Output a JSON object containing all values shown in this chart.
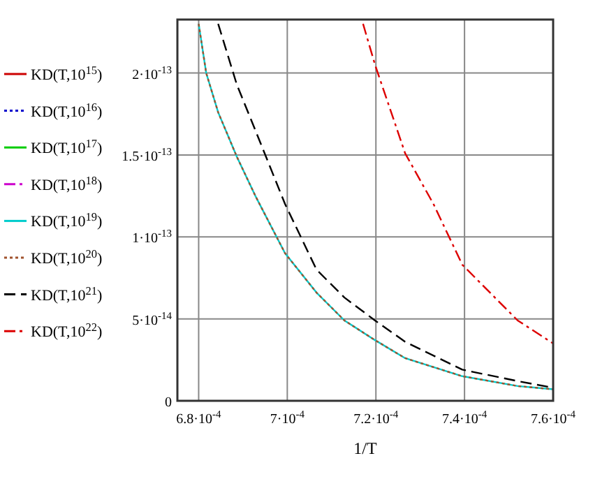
{
  "chart_data": {
    "type": "line",
    "xlabel": "1/T",
    "grid": true,
    "legend": "left",
    "marker": "none",
    "xlim": [
      0.0006752,
      0.00076
    ],
    "ylim": [
      0,
      2.326e-13
    ],
    "xticks": [
      {
        "value": 0.00068,
        "label": "6.8·10$^{-4}$"
      },
      {
        "value": 0.0007,
        "label": "7·10$^{-4}$"
      },
      {
        "value": 0.00072,
        "label": "7.2·10$^{-4}$"
      },
      {
        "value": 0.00074,
        "label": "7.4·10$^{-4}$"
      },
      {
        "value": 0.00076,
        "label": "7.6·10$^{-4}$"
      }
    ],
    "yticks": [
      0,
      {
        "value": 5e-14,
        "label": "5·10$^{-14}$"
      },
      {
        "value": 1e-13,
        "label": "1·10$^{-13}$"
      },
      {
        "value": 1.5e-13,
        "label": "1.5·10$^{-13}$"
      },
      {
        "value": 2e-13,
        "label": "2·10$^{-13}$"
      }
    ],
    "x": [
      0.00068,
      0.0006817,
      0.0006844,
      0.0006886,
      0.0006928,
      0.0006995,
      0.0007066,
      0.0007129,
      0.0007198,
      0.0007266,
      0.0007395,
      0.000752,
      0.00076
    ],
    "series": [
      {
        "name": "KD(T,10$^{15}$)",
        "color": "#cc0000",
        "line_style": "solid",
        "values": [
          null,
          null,
          null,
          null,
          null,
          null,
          null,
          null,
          null,
          null,
          null,
          null,
          null
        ]
      },
      {
        "name": "KD(T,10$^{16}$)",
        "color": "#0000cc",
        "line_style": "dotted",
        "values": [
          null,
          null,
          null,
          null,
          null,
          null,
          null,
          null,
          null,
          null,
          null,
          null,
          null
        ]
      },
      {
        "name": "KD(T,10$^{17}$)",
        "color": "#00cc00",
        "line_style": "solid",
        "values": [
          null,
          null,
          null,
          null,
          null,
          null,
          null,
          null,
          null,
          null,
          null,
          null,
          null
        ]
      },
      {
        "name": "KD(T,10$^{18}$)",
        "color": "#cc00cc",
        "line_style": "dashdot",
        "values": [
          null,
          null,
          null,
          null,
          null,
          null,
          null,
          null,
          null,
          null,
          null,
          null,
          null
        ]
      },
      {
        "name": "KD(T,10$^{19}$)",
        "color": "#00cccc",
        "line_style": "solid",
        "values": [
          2.3e-13,
          2e-13,
          1.76e-13,
          1.49e-13,
          1.25e-13,
          9e-14,
          6.6e-14,
          4.9e-14,
          3.7e-14,
          2.6e-14,
          1.5e-14,
          9e-15,
          7e-15
        ]
      },
      {
        "name": "KD(T,10$^{20}$)",
        "color": "#a0522d",
        "line_style": "dotted",
        "values": [
          2.3e-13,
          2e-13,
          1.76e-13,
          1.49e-13,
          1.25e-13,
          9e-14,
          6.6e-14,
          4.9e-14,
          3.7e-14,
          2.6e-14,
          1.5e-14,
          9e-15,
          7e-15
        ]
      },
      {
        "name": "KD(T,10$^{21}$)",
        "color": "#000000",
        "line_style": "dashed",
        "x": [
          0.0006844,
          0.0006886,
          0.0006928,
          0.0006995,
          0.0007066,
          0.0007129,
          0.0007198,
          0.0007266,
          0.0007395,
          0.000752,
          0.00076
        ],
        "values": [
          2.3e-13,
          1.93e-13,
          1.65e-13,
          1.2e-13,
          8e-14,
          6.3e-14,
          4.9e-14,
          3.6e-14,
          1.9e-14,
          1.2e-14,
          8e-15
        ]
      },
      {
        "name": "KD(T,10$^{22}$)",
        "color": "#dd0000",
        "line_style": "dashdot",
        "x": [
          0.0007171,
          0.0007198,
          0.0007266,
          0.000733,
          0.0007395,
          0.000752,
          0.00076
        ],
        "values": [
          2.3e-13,
          2.05e-13,
          1.51e-13,
          1.2e-13,
          8.3e-14,
          4.9e-14,
          3.5e-14
        ]
      }
    ]
  }
}
